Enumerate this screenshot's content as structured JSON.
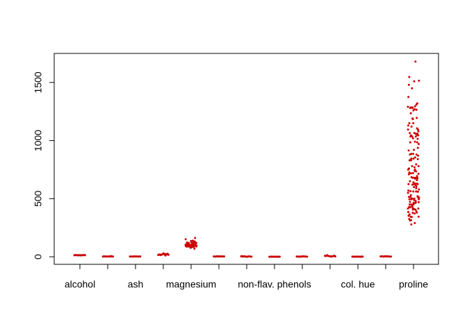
{
  "chart_data": {
    "type": "strip",
    "color": "#cc0000",
    "categories": [
      "alcohol",
      null,
      "ash",
      null,
      "magnesium",
      null,
      null,
      "non-flav. phenols",
      null,
      null,
      "col. hue",
      null,
      "proline"
    ],
    "values": [
      [
        14.2,
        13.2,
        13.2,
        14.4,
        13.2,
        14.2,
        14.4,
        14.1,
        14.8,
        13.9,
        12.4,
        12.3,
        13.1,
        12.7,
        13.5,
        11.6
      ],
      [
        1.7,
        1.8,
        2.4,
        1.9,
        2.6,
        1.8,
        3.1,
        4.0,
        5.8,
        2.1,
        1.5,
        3.9
      ],
      [
        2.4,
        2.1,
        2.7,
        2.5,
        2.9,
        2.5,
        2.3,
        2.0,
        2.6,
        2.2,
        1.4,
        3.2
      ],
      [
        15.6,
        11.2,
        18.6,
        16.8,
        21.0,
        15.2,
        25.0,
        30.0,
        19.5,
        20.0,
        22.5,
        17.0,
        24.0,
        18.0
      ],
      [
        127,
        100,
        101,
        113,
        118,
        112,
        96,
        121,
        97,
        98,
        105,
        95,
        89,
        91,
        102,
        112,
        120,
        115,
        108,
        116,
        126,
        102,
        101,
        95,
        96,
        124,
        93,
        94,
        107,
        96,
        101,
        106,
        104,
        132,
        86,
        88,
        85,
        92,
        151,
        139,
        101,
        97,
        86,
        112,
        162,
        136,
        122,
        104,
        98,
        106,
        85,
        94,
        89,
        96,
        88,
        101,
        80,
        103,
        70,
        78
      ],
      [
        2.8,
        2.7,
        2.8,
        3.9,
        2.8,
        3.3,
        2.5,
        2.6,
        1.1,
        1.6,
        2.0,
        3.5
      ],
      [
        3.1,
        2.8,
        3.2,
        3.5,
        2.7,
        3.4,
        0.6,
        0.5,
        1.6,
        2.0,
        0.3,
        5.1
      ],
      [
        0.28,
        0.26,
        0.3,
        0.24,
        0.39,
        0.34,
        0.53,
        0.63,
        0.13,
        0.45,
        0.58,
        0.37
      ],
      [
        2.3,
        1.3,
        2.8,
        2.2,
        1.8,
        1.9,
        1.0,
        0.4,
        3.6,
        1.5,
        1.2,
        2.1
      ],
      [
        5.6,
        4.4,
        5.7,
        7.8,
        4.3,
        6.8,
        2.8,
        1.3,
        13.0,
        9.3,
        3.6,
        10.5
      ],
      [
        1.04,
        1.05,
        1.03,
        0.86,
        1.04,
        1.05,
        0.48,
        0.7,
        1.71,
        0.96,
        0.78,
        1.2
      ],
      [
        3.9,
        3.4,
        3.2,
        3.5,
        2.9,
        2.9,
        1.3,
        1.8,
        4.0,
        2.6,
        1.6,
        3.0
      ],
      [
        1065,
        1050,
        1185,
        1480,
        735,
        1450,
        1290,
        1295,
        1045,
        1045,
        1510,
        1280,
        1320,
        1150,
        1547,
        1310,
        1280,
        1130,
        1680,
        845,
        780,
        770,
        1035,
        1015,
        845,
        830,
        1195,
        1285,
        915,
        1035,
        1285,
        1515,
        990,
        1235,
        1095,
        920,
        880,
        1105,
        1020,
        760,
        795,
        1035,
        1095,
        680,
        885,
        1080,
        1065,
        985,
        1060,
        1260,
        1150,
        1265,
        1190,
        1375,
        1060,
        1120,
        970,
        1270,
        1285,
        520,
        680,
        450,
        630,
        420,
        355,
        678,
        502,
        510,
        750,
        718,
        870,
        410,
        472,
        985,
        886,
        428,
        392,
        500,
        750,
        463,
        278,
        714,
        630,
        515,
        520,
        450,
        495,
        562,
        680,
        625,
        480,
        450,
        495,
        290,
        345,
        937,
        625,
        428,
        660,
        406,
        710,
        562,
        438,
        415,
        672,
        315,
        510,
        488,
        312,
        680,
        562,
        325,
        607,
        434,
        385,
        407,
        495,
        345,
        372,
        564,
        625,
        465,
        365,
        380,
        378,
        352,
        466,
        342,
        580,
        630,
        530,
        560,
        600,
        650,
        695,
        720,
        515,
        590,
        780,
        550,
        855,
        830,
        415,
        500,
        425,
        675,
        640,
        725,
        880,
        620,
        570,
        615,
        685,
        470,
        740,
        835,
        840
      ]
    ],
    "ylim": [
      -65,
      1750
    ],
    "yticks": [
      0,
      500,
      1000,
      1500
    ]
  }
}
